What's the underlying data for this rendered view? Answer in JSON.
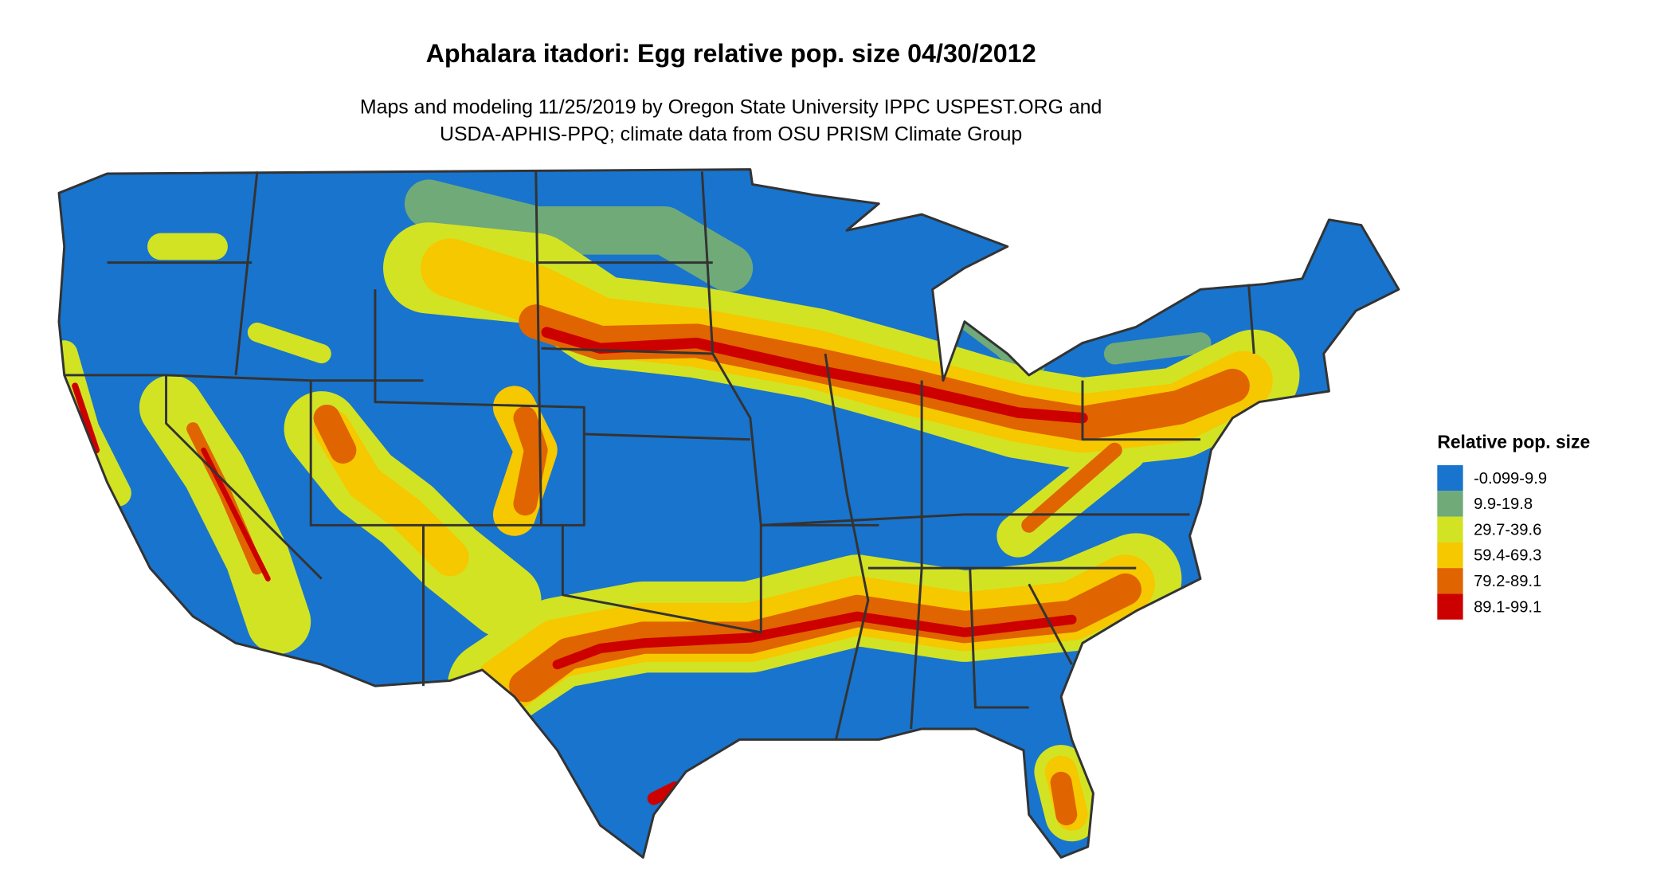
{
  "title": "Aphalara itadori: Egg relative pop. size 04/30/2012",
  "subtitle_line1": "Maps and modeling 11/25/2019 by Oregon State University IPPC USPEST.ORG and",
  "subtitle_line2": "USDA-APHIS-PPQ; climate data from OSU PRISM Climate Group",
  "legend": {
    "title": "Relative pop. size",
    "placement": "right",
    "items": [
      {
        "label": "-0.099-9.9",
        "color": "#1874CD"
      },
      {
        "label": "9.9-19.8",
        "color": "#6FAA78"
      },
      {
        "label": "29.7-39.6",
        "color": "#D2E324"
      },
      {
        "label": "59.4-69.3",
        "color": "#F5C800"
      },
      {
        "label": "79.2-89.1",
        "color": "#E06400"
      },
      {
        "label": "89.1-99.1",
        "color": "#CD0000"
      }
    ]
  },
  "map": {
    "region": "Contiguous United States",
    "state_border_color": "#333333"
  }
}
